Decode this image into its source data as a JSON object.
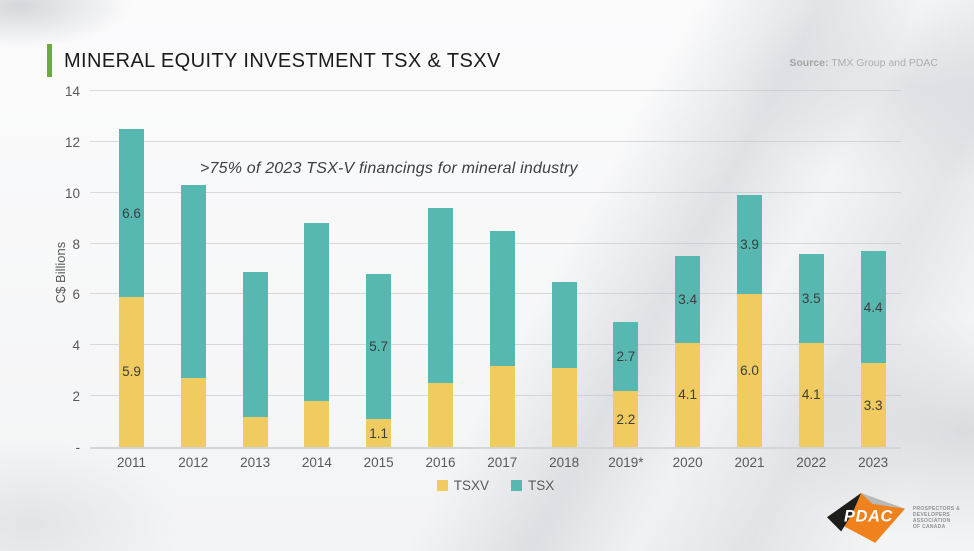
{
  "slide": {
    "title": "MINERAL EQUITY INVESTMENT TSX & TSXV",
    "source_label": "Source:",
    "source_text": "TMX Group and PDAC",
    "annotation": ">75% of 2023 TSX-V financings for mineral industry"
  },
  "chart_data": {
    "type": "bar",
    "stacked": true,
    "title": "MINERAL EQUITY INVESTMENT TSX & TSXV",
    "ylabel": "C$ Billions",
    "ylim": [
      0,
      14
    ],
    "grid": true,
    "legend_position": "bottom",
    "y_ticks": [
      {
        "label": "14",
        "value": 14
      },
      {
        "label": "12",
        "value": 12
      },
      {
        "label": "10",
        "value": 10
      },
      {
        "label": "8",
        "value": 8
      },
      {
        "label": "6",
        "value": 6
      },
      {
        "label": "4",
        "value": 4
      },
      {
        "label": "2",
        "value": 2
      },
      {
        "label": "-",
        "value": 0
      }
    ],
    "categories": [
      "2011",
      "2012",
      "2013",
      "2014",
      "2015",
      "2016",
      "2017",
      "2018",
      "2019*",
      "2020",
      "2021",
      "2022",
      "2023"
    ],
    "series": [
      {
        "name": "TSXV",
        "color": "#efcb60",
        "values": [
          5.9,
          2.7,
          1.2,
          1.8,
          1.1,
          2.5,
          3.2,
          3.1,
          2.2,
          4.1,
          6.0,
          4.1,
          3.3
        ],
        "data_labels": [
          "5.9",
          "",
          "",
          "",
          "1.1",
          "",
          "",
          "",
          "2.2",
          "4.1",
          "6.0",
          "4.1",
          "3.3"
        ]
      },
      {
        "name": "TSX",
        "color": "#57b7b1",
        "values": [
          6.6,
          7.6,
          5.7,
          7.0,
          5.7,
          6.9,
          5.3,
          3.4,
          2.7,
          3.4,
          3.9,
          3.5,
          4.4
        ],
        "data_labels": [
          "6.6",
          "",
          "",
          "",
          "5.7",
          "",
          "",
          "",
          "2.7",
          "3.4",
          "3.9",
          "3.5",
          "4.4"
        ]
      }
    ]
  },
  "footer": {
    "logo_text": "PDAC",
    "org_lines": [
      "PROSPECTORS &",
      "DEVELOPERS",
      "ASSOCIATION",
      "OF CANADA"
    ]
  },
  "colors": {
    "tsxv": "#efcb60",
    "tsx": "#57b7b1",
    "accent_green": "#6aaa3f",
    "logo_orange": "#f0821e",
    "logo_black": "#1d1d1b",
    "logo_gray": "#b7b9bb"
  }
}
